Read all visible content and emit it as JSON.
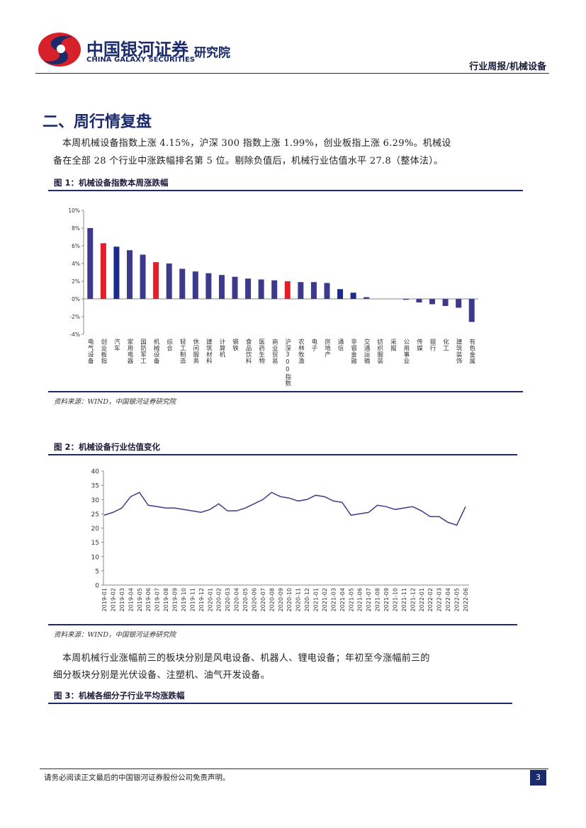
{
  "header": {
    "company_cn": "中国银河证券",
    "company_en": "CHINA GALAXY SECURITIES",
    "institute": "研究院",
    "report_type": "行业周报/机械设备"
  },
  "section_title": "二、周行情复盘",
  "paragraph_1": [
    "本周机械设备指数上涨 4.15%，沪深 300 指数上涨 1.99%，创业板指上涨 6.29%。机械设",
    "备在全部 28 个行业中涨跌幅排名第 5 位。剔除负值后，机械行业估值水平 27.8（整体法）。"
  ],
  "figure_1": {
    "caption": "图 1：机械设备指数本周涨跌幅",
    "source": "资料来源：WIND，中国银河证券研究院"
  },
  "figure_2": {
    "caption": "图 2：机械设备行业估值变化",
    "source": "资料来源：WIND，中国银河证券研究院"
  },
  "paragraph_2": [
    "本周机械行业涨幅前三的板块分别是风电设备、机器人、锂电设备；年初至今涨幅前三的",
    "细分板块分别是光伏设备、注塑机、油气开发设备。"
  ],
  "figure_3": {
    "caption": "图 3：机械各细分子行业平均涨跌幅"
  },
  "footer": {
    "disclaimer": "请务必阅读正文最后的中国银河证券股份公司免责声明。",
    "page": "3"
  },
  "chart_data": [
    {
      "type": "bar",
      "categories": [
        "电气设备",
        "创业板指",
        "汽车",
        "家用电器",
        "国防军工",
        "机械设备",
        "综合",
        "轻工制造",
        "休闲服务",
        "建筑材料",
        "计算机",
        "钢铁",
        "食品饮料",
        "医药生物",
        "商业贸易",
        "沪深300指数",
        "农林牧渔",
        "电子",
        "房地产",
        "通信",
        "非银金融",
        "交通运输",
        "纺织服装",
        "采掘",
        "公用事业",
        "传媒",
        "银行",
        "化工",
        "建筑装饰",
        "有色金属"
      ],
      "values": [
        8.0,
        6.29,
        5.9,
        5.5,
        5.0,
        4.15,
        4.0,
        3.4,
        3.1,
        2.9,
        2.7,
        2.5,
        2.3,
        2.2,
        2.1,
        1.99,
        1.9,
        1.9,
        1.8,
        1.1,
        0.7,
        0.2,
        0.0,
        0.0,
        -0.1,
        -0.4,
        -0.6,
        -0.8,
        -1.0,
        -2.6
      ],
      "colors": [
        "#3d3a8c",
        "#e2202a",
        "#1b2a8a",
        "#3d3a8c",
        "#3d3a8c",
        "#e2202a",
        "#3d3a8c",
        "#3d3a8c",
        "#3d3a8c",
        "#3d3a8c",
        "#3d3a8c",
        "#3d3a8c",
        "#3d3a8c",
        "#3d3a8c",
        "#3d3a8c",
        "#e2202a",
        "#3d3a8c",
        "#3d3a8c",
        "#3d3a8c",
        "#1b2a8a",
        "#1b2a8a",
        "#3d3a8c",
        "#3d3a8c",
        "#3d3a8c",
        "#3d3a8c",
        "#3d3a8c",
        "#3d3a8c",
        "#3d3a8c",
        "#3d3a8c",
        "#3d3a8c"
      ],
      "ylim": [
        -4,
        10
      ],
      "yticks": [
        {
          "value": -4,
          "label": "-4%"
        },
        {
          "value": -2,
          "label": "-2%"
        },
        {
          "value": 0,
          "label": "0%"
        },
        {
          "value": 2,
          "label": "2%"
        },
        {
          "value": 4,
          "label": "4%"
        },
        {
          "value": 6,
          "label": "6%"
        },
        {
          "value": 8,
          "label": "8%"
        },
        {
          "value": 10,
          "label": "10%"
        }
      ],
      "grid": false
    },
    {
      "type": "line",
      "x": [
        "2019-01",
        "2019-02",
        "2019-03",
        "2019-04",
        "2019-05",
        "2019-06",
        "2019-07",
        "2019-08",
        "2019-09",
        "2019-10",
        "2019-11",
        "2019-12",
        "2020-01",
        "2020-02",
        "2020-03",
        "2020-04",
        "2020-05",
        "2020-06",
        "2020-07",
        "2020-08",
        "2020-09",
        "2020-10",
        "2020-11",
        "2020-12",
        "2021-01",
        "2021-02",
        "2021-03",
        "2021-04",
        "2021-05",
        "2021-06",
        "2021-07",
        "2021-08",
        "2021-09",
        "2021-10",
        "2021-11",
        "2021-12",
        "2022-01",
        "2022-02",
        "2022-03",
        "2022-04",
        "2022-05",
        "2022-06"
      ],
      "series": [
        {
          "color": "#3d3a8c",
          "values": [
            24.5,
            25.5,
            27,
            31,
            32.5,
            28,
            27.5,
            27,
            27,
            26.5,
            26,
            25.5,
            26.5,
            28.5,
            26,
            26,
            27,
            28.5,
            30,
            32.5,
            31,
            30.5,
            29.5,
            30,
            31.5,
            31,
            29.5,
            29,
            24.5,
            25,
            25.5,
            28,
            27.5,
            26.5,
            27,
            27.5,
            26,
            24,
            24,
            22,
            21,
            27.5
          ]
        }
      ],
      "ylim": [
        0,
        40
      ],
      "yticks": [
        0,
        5,
        10,
        15,
        20,
        25,
        30,
        35,
        40
      ],
      "grid": false
    }
  ]
}
